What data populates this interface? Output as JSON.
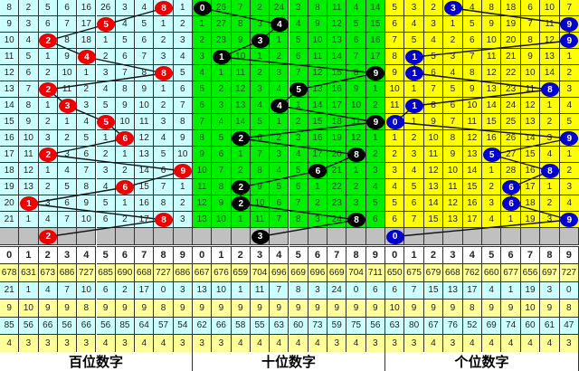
{
  "digits_header": [
    "0",
    "1",
    "2",
    "3",
    "4",
    "5",
    "6",
    "7",
    "8",
    "9"
  ],
  "colors": {
    "gray_row": "#c0c0c0",
    "stat_yellow": "#ffff99",
    "stat_cyan": "#ccffff",
    "line": "#111111"
  },
  "panels": [
    {
      "label": "百位数字",
      "bg": "#ccffff",
      "ball_color": "#ee0000",
      "rows": [
        [
          8,
          2,
          5,
          6,
          16,
          26,
          3,
          4,
          8,
          1
        ],
        [
          9,
          3,
          6,
          7,
          17,
          5,
          4,
          5,
          1,
          2
        ],
        [
          10,
          4,
          2,
          8,
          18,
          1,
          5,
          6,
          2,
          3
        ],
        [
          11,
          5,
          1,
          9,
          4,
          2,
          6,
          7,
          3,
          4
        ],
        [
          12,
          6,
          2,
          10,
          1,
          3,
          7,
          8,
          8,
          5
        ],
        [
          13,
          7,
          2,
          11,
          2,
          4,
          8,
          9,
          1,
          6
        ],
        [
          14,
          8,
          1,
          3,
          3,
          5,
          9,
          10,
          2,
          7
        ],
        [
          15,
          9,
          2,
          1,
          4,
          5,
          10,
          11,
          3,
          8
        ],
        [
          16,
          10,
          3,
          2,
          5,
          1,
          6,
          12,
          4,
          9
        ],
        [
          17,
          11,
          2,
          3,
          6,
          2,
          1,
          13,
          5,
          10
        ],
        [
          18,
          12,
          1,
          4,
          7,
          3,
          2,
          14,
          6,
          9
        ],
        [
          19,
          13,
          2,
          5,
          8,
          4,
          6,
          15,
          7,
          1
        ],
        [
          20,
          1,
          3,
          6,
          9,
          5,
          1,
          16,
          8,
          2
        ],
        [
          21,
          1,
          4,
          7,
          10,
          6,
          2,
          17,
          8,
          3
        ]
      ],
      "hits": [
        8,
        5,
        2,
        4,
        8,
        2,
        3,
        5,
        6,
        2,
        9,
        6,
        1,
        8
      ],
      "predicted": 2,
      "stats": [
        [
          678,
          631,
          673,
          686,
          727,
          685,
          690,
          668,
          727,
          686
        ],
        [
          21,
          1,
          4,
          7,
          10,
          6,
          2,
          17,
          0,
          3
        ],
        [
          9,
          10,
          9,
          9,
          8,
          9,
          9,
          9,
          8,
          9
        ],
        [
          85,
          56,
          66,
          56,
          66,
          56,
          85,
          64,
          57,
          54
        ],
        [
          4,
          3,
          3,
          3,
          3,
          4,
          3,
          4,
          4,
          3
        ]
      ]
    },
    {
      "label": "十位数字",
      "bg": "#00ee00",
      "ball_color": "#000000",
      "rows": [
        [
          0,
          26,
          7,
          2,
          24,
          3,
          8,
          11,
          4,
          14
        ],
        [
          1,
          27,
          8,
          3,
          4,
          4,
          9,
          12,
          5,
          15
        ],
        [
          2,
          28,
          9,
          3,
          1,
          5,
          10,
          13,
          6,
          16
        ],
        [
          3,
          1,
          10,
          1,
          2,
          6,
          11,
          14,
          7,
          17
        ],
        [
          4,
          1,
          11,
          2,
          3,
          7,
          12,
          15,
          8,
          9
        ],
        [
          5,
          2,
          12,
          3,
          4,
          5,
          13,
          16,
          9,
          1
        ],
        [
          6,
          3,
          13,
          4,
          4,
          1,
          14,
          17,
          10,
          2
        ],
        [
          7,
          4,
          14,
          5,
          1,
          2,
          15,
          18,
          11,
          9
        ],
        [
          8,
          5,
          2,
          6,
          2,
          3,
          16,
          19,
          12,
          1
        ],
        [
          9,
          6,
          1,
          7,
          3,
          4,
          17,
          20,
          8,
          2
        ],
        [
          10,
          7,
          2,
          8,
          4,
          5,
          6,
          21,
          1,
          3
        ],
        [
          11,
          8,
          2,
          9,
          5,
          6,
          1,
          22,
          2,
          4
        ],
        [
          12,
          9,
          2,
          10,
          6,
          7,
          2,
          23,
          3,
          5
        ],
        [
          13,
          10,
          1,
          11,
          7,
          8,
          3,
          24,
          8,
          6
        ]
      ],
      "hits": [
        0,
        4,
        3,
        1,
        9,
        5,
        4,
        9,
        2,
        8,
        6,
        2,
        2,
        8
      ],
      "predicted": 3,
      "stats": [
        [
          667,
          676,
          659,
          704,
          696,
          669,
          696,
          669,
          704,
          711
        ],
        [
          13,
          10,
          1,
          11,
          7,
          8,
          3,
          24,
          0,
          6
        ],
        [
          9,
          9,
          9,
          9,
          9,
          9,
          9,
          9,
          9,
          9
        ],
        [
          62,
          66,
          58,
          55,
          63,
          60,
          73,
          59,
          75,
          56
        ],
        [
          3,
          3,
          4,
          4,
          4,
          4,
          4,
          3,
          4,
          3
        ]
      ]
    },
    {
      "label": "个位数字",
      "bg": "#ffff00",
      "ball_color": "#0000cc",
      "rows": [
        [
          5,
          3,
          2,
          3,
          4,
          8,
          18,
          6,
          10,
          7
        ],
        [
          6,
          4,
          3,
          1,
          5,
          9,
          19,
          7,
          11,
          9
        ],
        [
          7,
          5,
          4,
          2,
          6,
          10,
          20,
          8,
          12,
          9
        ],
        [
          8,
          1,
          5,
          3,
          7,
          11,
          21,
          9,
          13,
          1
        ],
        [
          9,
          1,
          6,
          4,
          8,
          12,
          22,
          10,
          14,
          2
        ],
        [
          10,
          1,
          7,
          5,
          9,
          13,
          23,
          11,
          8,
          3
        ],
        [
          11,
          1,
          8,
          6,
          10,
          14,
          24,
          12,
          1,
          4
        ],
        [
          0,
          1,
          9,
          7,
          11,
          15,
          25,
          13,
          2,
          5
        ],
        [
          1,
          2,
          10,
          8,
          12,
          16,
          26,
          14,
          3,
          9
        ],
        [
          2,
          3,
          11,
          9,
          13,
          5,
          27,
          15,
          4,
          1
        ],
        [
          3,
          4,
          12,
          10,
          14,
          1,
          28,
          16,
          8,
          2
        ],
        [
          4,
          5,
          13,
          11,
          15,
          2,
          6,
          17,
          1,
          3
        ],
        [
          5,
          6,
          14,
          12,
          16,
          3,
          6,
          18,
          2,
          4
        ],
        [
          6,
          7,
          15,
          13,
          17,
          4,
          1,
          19,
          3,
          9
        ]
      ],
      "hits": [
        3,
        9,
        9,
        1,
        1,
        8,
        1,
        0,
        9,
        5,
        8,
        6,
        6,
        9
      ],
      "predicted": 0,
      "stats": [
        [
          650,
          675,
          679,
          668,
          762,
          660,
          677,
          656,
          697,
          727
        ],
        [
          6,
          7,
          15,
          13,
          17,
          4,
          1,
          19,
          3,
          0
        ],
        [
          10,
          9,
          9,
          9,
          8,
          9,
          9,
          10,
          9,
          8
        ],
        [
          63,
          80,
          67,
          76,
          52,
          69,
          74,
          60,
          61,
          47
        ],
        [
          3,
          3,
          4,
          3,
          4,
          4,
          4,
          4,
          4,
          3
        ]
      ]
    }
  ]
}
